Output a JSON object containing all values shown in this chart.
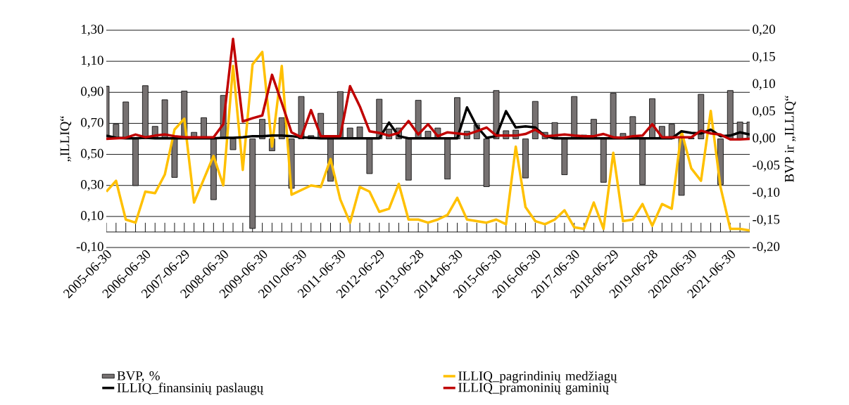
{
  "chart_data": {
    "type": "bar",
    "categories": [
      "2005-06-30",
      null,
      null,
      null,
      "2006-06-30",
      null,
      null,
      null,
      "2007-06-29",
      null,
      null,
      null,
      "2008-06-30",
      null,
      null,
      null,
      "2009-06-30",
      null,
      null,
      null,
      "2010-06-30",
      null,
      null,
      null,
      "2011-06-30",
      null,
      null,
      null,
      "2012-06-29",
      null,
      null,
      null,
      "2013-06-28",
      null,
      null,
      null,
      "2014-06-30",
      null,
      null,
      null,
      "2015-06-30",
      null,
      null,
      null,
      "2016-06-30",
      null,
      null,
      null,
      "2017-06-30",
      null,
      null,
      null,
      "2018-06-29",
      null,
      null,
      null,
      "2019-06-28",
      null,
      null,
      null,
      "2020-06-30",
      null,
      null,
      null,
      "2021-06-30",
      null,
      null
    ],
    "series": [
      {
        "name": "BVP, %",
        "axis": "y2",
        "color": "#767171",
        "values": [
          0.097,
          0.027,
          0.068,
          -0.086,
          0.098,
          0.023,
          0.072,
          -0.071,
          0.088,
          0.012,
          0.039,
          -0.112,
          0.08,
          -0.02,
          null,
          -0.165,
          0.036,
          -0.022,
          0.039,
          -0.091,
          0.078,
          0.006,
          0.047,
          -0.078,
          0.087,
          0.02,
          0.022,
          -0.064,
          0.073,
          0.018,
          0.02,
          -0.076,
          0.071,
          0.014,
          0.02,
          -0.074,
          0.076,
          0.014,
          0.026,
          -0.088,
          0.089,
          0.015,
          0.016,
          -0.072,
          0.069,
          0.012,
          0.03,
          -0.066,
          0.078,
          0.007,
          0.036,
          -0.08,
          0.084,
          0.01,
          0.041,
          -0.084,
          0.074,
          0.023,
          0.027,
          -0.104,
          0.002,
          0.082,
          null,
          -0.084,
          0.089,
          0.031,
          0.031
        ]
      },
      {
        "name": "ILLIQ_pagrindinių medžiagų",
        "type": "line",
        "color": "#ffc000",
        "values": [
          0.26,
          0.33,
          0.08,
          0.06,
          0.26,
          0.25,
          0.37,
          0.66,
          0.73,
          0.19,
          0.34,
          0.49,
          0.3,
          1.07,
          0.4,
          1.08,
          1.16,
          0.55,
          1.07,
          0.24,
          0.27,
          0.3,
          0.29,
          0.47,
          0.21,
          0.06,
          0.29,
          0.26,
          0.13,
          0.15,
          0.31,
          0.08,
          0.08,
          0.06,
          0.08,
          0.11,
          0.22,
          0.08,
          0.07,
          0.06,
          0.08,
          0.05,
          0.55,
          0.16,
          0.07,
          0.05,
          0.08,
          0.14,
          0.03,
          0.02,
          0.19,
          0.02,
          0.51,
          0.07,
          0.08,
          0.18,
          0.04,
          0.18,
          0.15,
          0.65,
          0.41,
          0.33,
          0.78,
          0.29,
          0.02,
          0.02,
          0.01
        ]
      },
      {
        "name": "ILLIQ_finansinių paslaugų",
        "type": "line",
        "axis": "y2",
        "color": "#000000",
        "values": [
          0.006,
          0.002,
          0.001,
          0.001,
          0.002,
          0.001,
          0.001,
          0.001,
          0.001,
          0.001,
          0.001,
          0.001,
          0.002,
          0.002,
          0.003,
          0.005,
          0.005,
          0.006,
          0.006,
          0.005,
          0.003,
          0.002,
          0.001,
          0.001,
          0.001,
          0.001,
          0.001,
          0.001,
          0.001,
          0.03,
          0.005,
          0.001,
          0.001,
          0.001,
          0.001,
          0.001,
          0.001,
          0.058,
          0.023,
          0.002,
          0.005,
          0.051,
          0.021,
          0.023,
          0.021,
          0.005,
          0.001,
          0.001,
          0.001,
          0.001,
          0.001,
          0.001,
          0.001,
          0.001,
          0.001,
          0.001,
          0.001,
          0.001,
          0.001,
          0.014,
          0.011,
          0.01,
          0.017,
          0.005,
          0.006,
          0.012,
          0.008
        ]
      },
      {
        "name": "ILLIQ_pramoninių gaminių",
        "type": "line",
        "axis": "y2",
        "color": "#c00000",
        "values": [
          0,
          0.001,
          0.002,
          0.008,
          0.003,
          0.006,
          0.008,
          0.005,
          0.003,
          0.003,
          0.003,
          0.003,
          0.027,
          0.184,
          0.032,
          0.038,
          0.043,
          0.118,
          0.066,
          0.012,
          0.003,
          0.053,
          0.005,
          0.005,
          0.005,
          0.097,
          0.06,
          0.014,
          0.011,
          0.006,
          0.011,
          0.033,
          0.008,
          0.027,
          0.005,
          0.012,
          0.01,
          0.008,
          0.014,
          0.021,
          0.006,
          0.006,
          0.006,
          0.009,
          0.017,
          0.005,
          0.006,
          0.008,
          0.006,
          0.005,
          0.005,
          0.009,
          0.003,
          0.002,
          0.005,
          0.006,
          0.027,
          0.003,
          0.003,
          0.003,
          0.003,
          0.015,
          0.01,
          0.008,
          -0.001,
          -0.001,
          0
        ]
      }
    ],
    "ylabel": "„ILLIQ“",
    "y2label": "BVP ir „ILLIQ“",
    "ylim": [
      -0.1,
      1.3
    ],
    "yticks": [
      {
        "value": -0.1,
        "label": "-0,10"
      },
      {
        "value": 0.1,
        "label": "0,10"
      },
      {
        "value": 0.3,
        "label": "0,30"
      },
      {
        "value": 0.5,
        "label": "0,50"
      },
      {
        "value": 0.7,
        "label": "0,70"
      },
      {
        "value": 0.9,
        "label": "0,90"
      },
      {
        "value": 1.1,
        "label": "1,10"
      },
      {
        "value": 1.3,
        "label": "1,30"
      }
    ],
    "y2lim": [
      -0.2,
      0.2
    ],
    "y2ticks": [
      {
        "value": -0.2,
        "label": "-0,20"
      },
      {
        "value": -0.15,
        "label": "-0,15"
      },
      {
        "value": -0.1,
        "label": "-0,10"
      },
      {
        "value": -0.05,
        "label": "-0,05"
      },
      {
        "value": 0,
        "label": "0,00"
      },
      {
        "value": 0.05,
        "label": "0,05"
      },
      {
        "value": 0.1,
        "label": "0,10"
      },
      {
        "value": 0.15,
        "label": "0,15"
      },
      {
        "value": 0.2,
        "label": "0,20"
      }
    ],
    "grid": "y",
    "legend": "bottom"
  }
}
